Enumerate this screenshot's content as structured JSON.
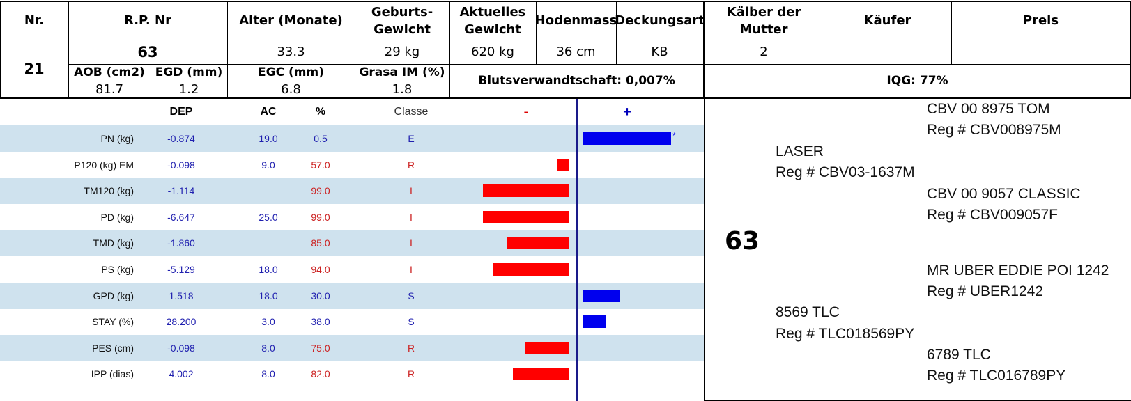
{
  "header": {
    "nr": "Nr.",
    "rp_nr": "R.P. Nr",
    "alter": "Alter (Monate)",
    "geburts_l1": "Geburts-",
    "geburts_l2": "Gewicht",
    "aktuelles_l1": "Aktuelles",
    "aktuelles_l2": "Gewicht",
    "hodenmass": "Hodenmass",
    "deckungsart": "Deckungsart",
    "kaelber_l1": "Kälber der",
    "kaelber_l2": "Mutter",
    "kaeufer": "Käufer",
    "preis": "Preis"
  },
  "animal": {
    "nr": "21",
    "rp_nr": "63",
    "alter": "33.3",
    "geburtsgewicht": "29 kg",
    "aktuelles_gewicht": "620 kg",
    "hodenmass": "36 cm",
    "deckungsart": "KB",
    "kaelber": "2",
    "kaeufer": "",
    "preis": ""
  },
  "carcass": {
    "aob_label": "AOB (cm2)",
    "egd_label": "EGD (mm)",
    "egc_label": "EGC (mm)",
    "grasa_label": "Grasa IM (%)",
    "aob": "81.7",
    "egd": "1.2",
    "egc": "6.8",
    "grasa": "1.8",
    "blutsverwandtschaft": "Blutsverwandtschaft: 0,007%",
    "iqg": "IQG: 77%"
  },
  "epd_table": {
    "col_dep": "DEP",
    "col_ac": "AC",
    "col_pct": "%",
    "col_classe": "Classe",
    "minus": "-",
    "plus": "+",
    "rows": [
      {
        "label": "PN (kg)",
        "dep": "-0.874",
        "ac": "19.0",
        "pct": "0.5",
        "classe": "E",
        "side": "plus",
        "bar": 1.0,
        "mark": "*"
      },
      {
        "label": "P120 (kg) EM",
        "dep": "-0.098",
        "ac": "9.0",
        "pct": "57.0",
        "classe": "R",
        "side": "minus",
        "bar": 0.14,
        "mark": ""
      },
      {
        "label": "TM120 (kg)",
        "dep": "-1.114",
        "ac": "",
        "pct": "99.0",
        "classe": "I",
        "side": "minus",
        "bar": 1.0,
        "mark": ""
      },
      {
        "label": "PD (kg)",
        "dep": "-6.647",
        "ac": "25.0",
        "pct": "99.0",
        "classe": "I",
        "side": "minus",
        "bar": 1.0,
        "mark": ""
      },
      {
        "label": "TMD (kg)",
        "dep": "-1.860",
        "ac": "",
        "pct": "85.0",
        "classe": "I",
        "side": "minus",
        "bar": 0.72,
        "mark": ""
      },
      {
        "label": "PS (kg)",
        "dep": "-5.129",
        "ac": "18.0",
        "pct": "94.0",
        "classe": "I",
        "side": "minus",
        "bar": 0.89,
        "mark": ""
      },
      {
        "label": "GPD (kg)",
        "dep": "1.518",
        "ac": "18.0",
        "pct": "30.0",
        "classe": "S",
        "side": "plus",
        "bar": 0.42,
        "mark": ""
      },
      {
        "label": "STAY (%)",
        "dep": "28.200",
        "ac": "3.0",
        "pct": "38.0",
        "classe": "S",
        "side": "plus",
        "bar": 0.26,
        "mark": ""
      },
      {
        "label": "PES (cm)",
        "dep": "-0.098",
        "ac": "8.0",
        "pct": "75.0",
        "classe": "R",
        "side": "minus",
        "bar": 0.51,
        "mark": ""
      },
      {
        "label": "IPP (dias)",
        "dep": "4.002",
        "ac": "8.0",
        "pct": "82.0",
        "classe": "R",
        "side": "minus",
        "bar": 0.65,
        "mark": ""
      }
    ],
    "colors": {
      "band": "#cfe2ee",
      "plus_bar": "#0000ee",
      "minus_bar": "#ff0000",
      "blue_text": "#1f1faf",
      "red_text": "#cc2222"
    }
  },
  "pedigree": {
    "animal": "63",
    "sire": {
      "name": "LASER",
      "reg": "Reg # CBV03-1637M"
    },
    "sire_sire": {
      "name": "CBV 00 8975 TOM",
      "reg": "Reg # CBV008975M"
    },
    "sire_dam": {
      "name": "CBV 00 9057 CLASSIC",
      "reg": "Reg # CBV009057F"
    },
    "dam": {
      "name": "8569 TLC",
      "reg": "Reg # TLC018569PY"
    },
    "dam_sire": {
      "name": "MR UBER EDDIE POI 1242",
      "reg": "Reg # UBER1242"
    },
    "dam_dam": {
      "name": "6789 TLC",
      "reg": "Reg # TLC016789PY"
    }
  }
}
